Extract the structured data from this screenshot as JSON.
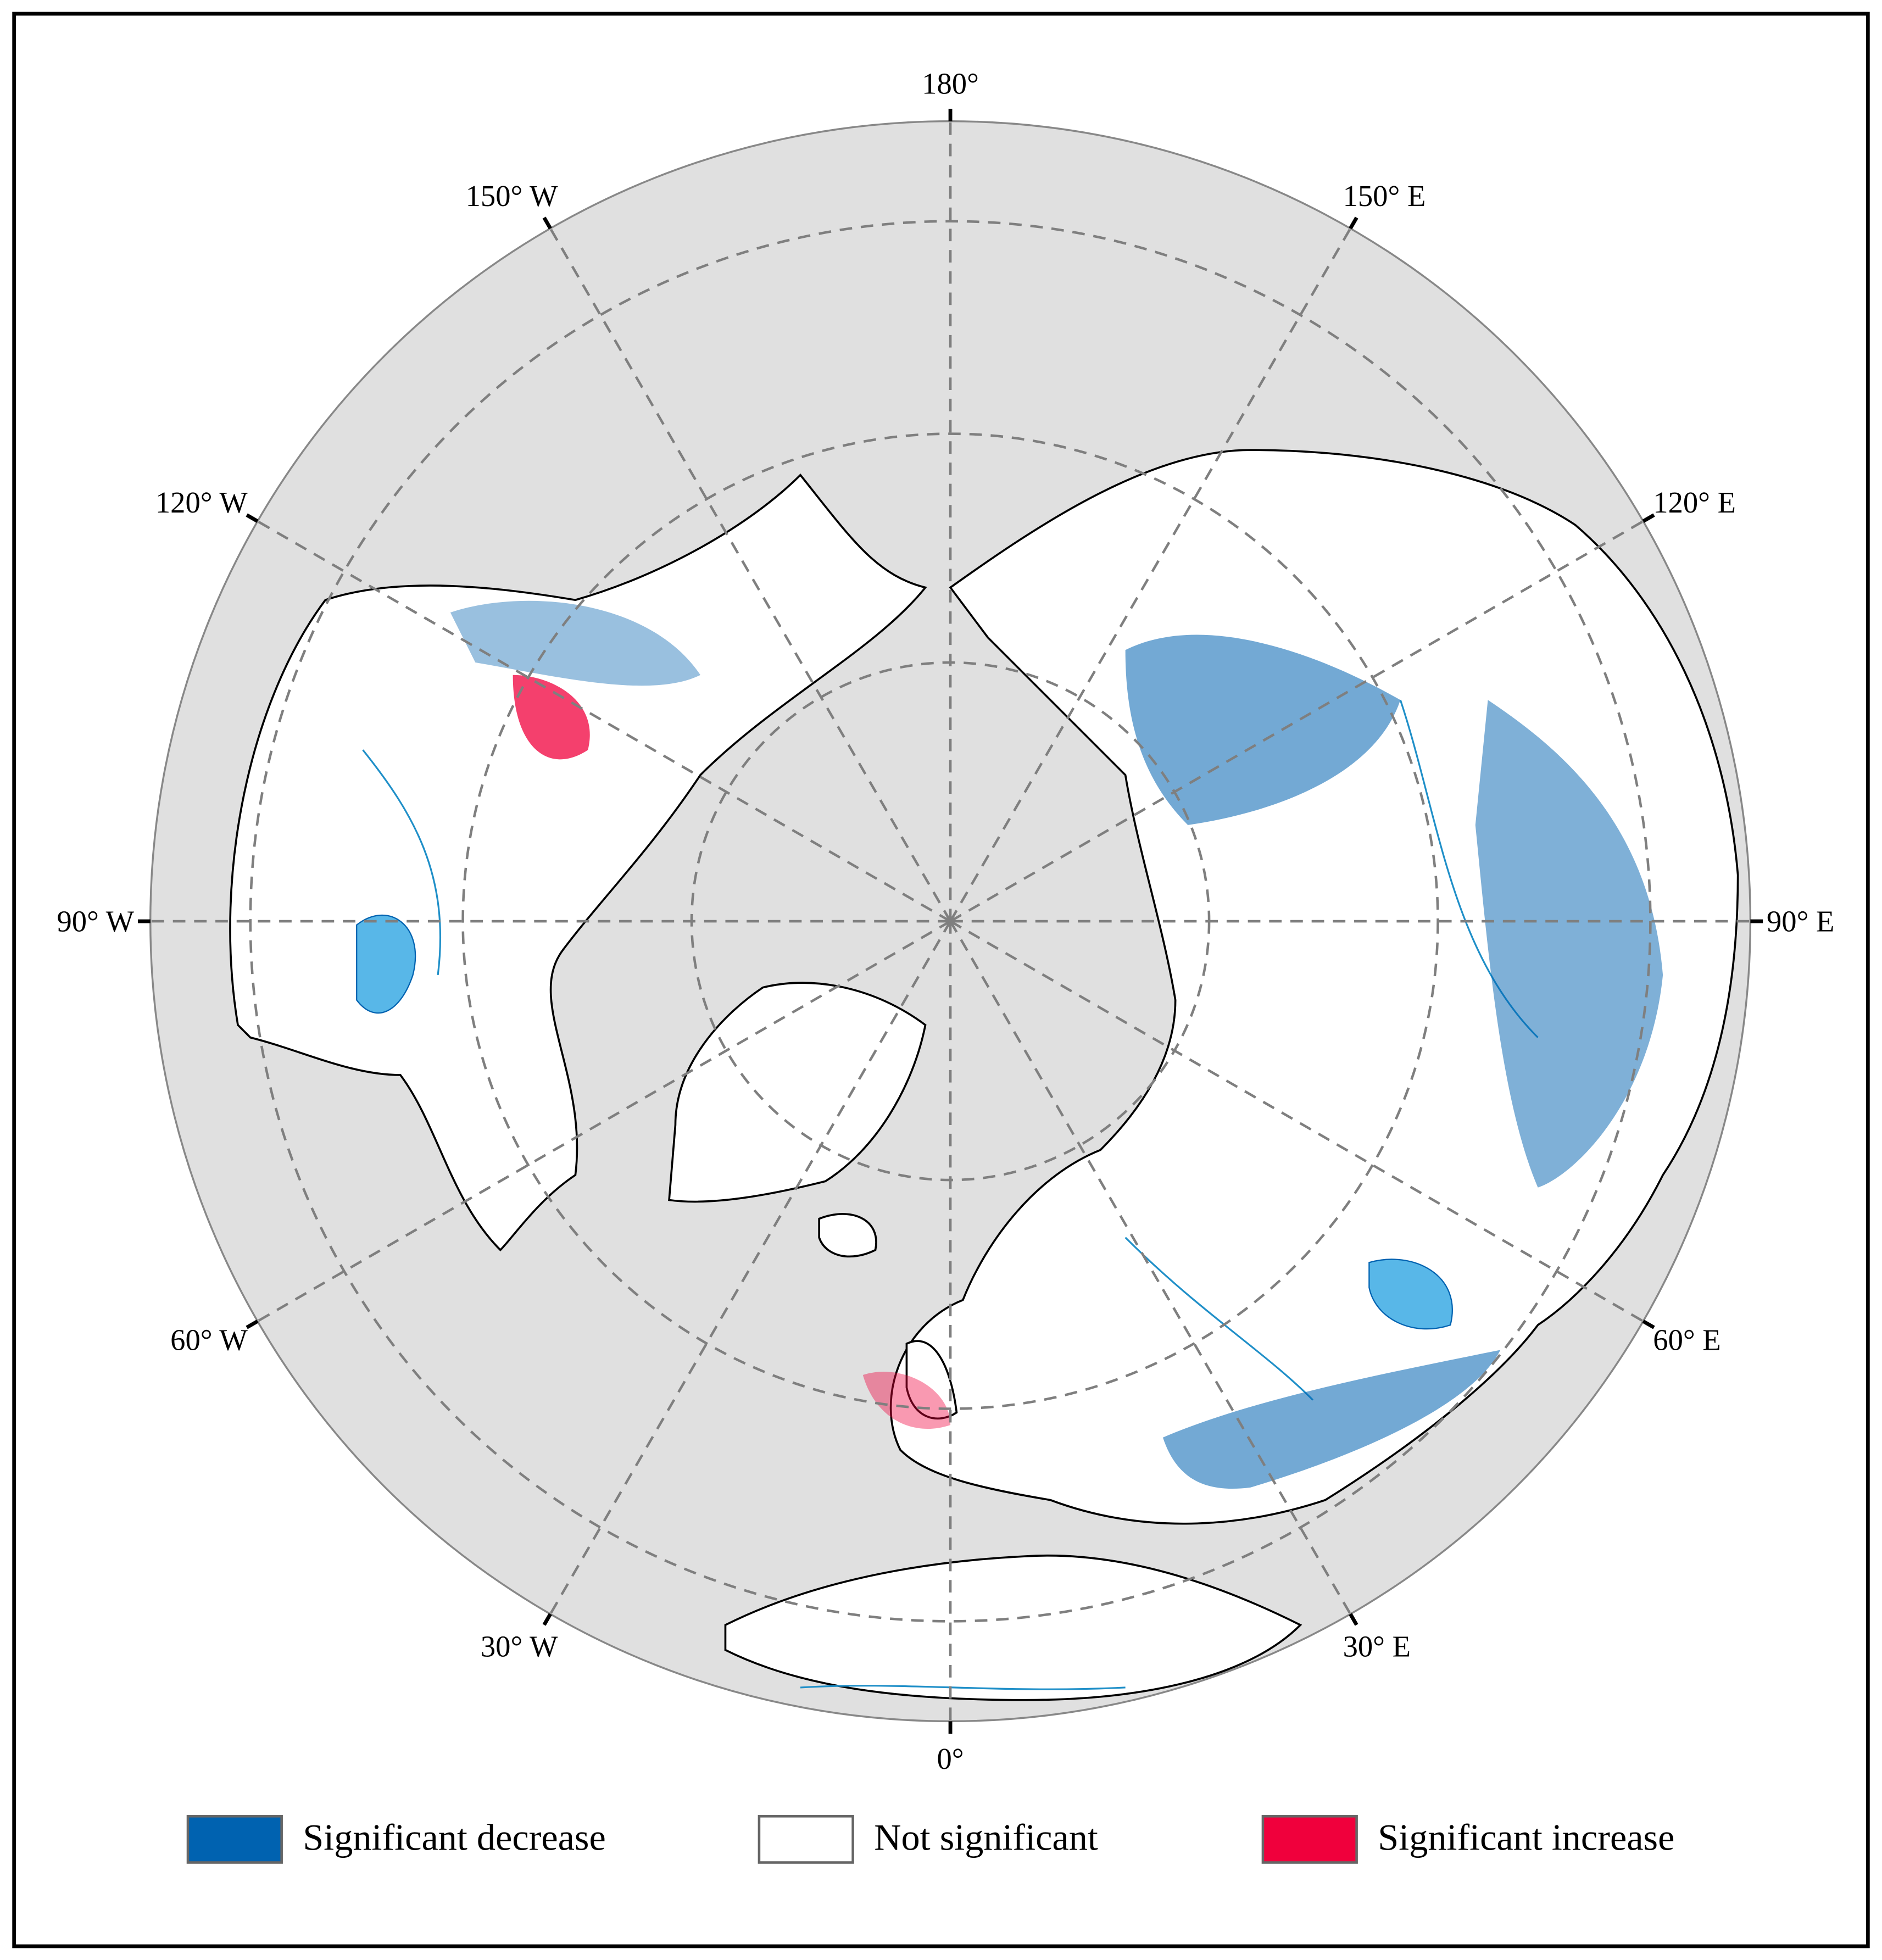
{
  "map": {
    "meridian_labels": [
      "180°",
      "150° E",
      "120° E",
      "90° E",
      "60° E",
      "30° E",
      "0°",
      "30° W",
      "60° W",
      "90° W",
      "120° W",
      "150° W"
    ],
    "legend": [
      {
        "label": "Significant decrease",
        "color": "#0062b0"
      },
      {
        "label": "Not significant",
        "color": "#ffffff"
      },
      {
        "label": "Significant increase",
        "color": "#f0003c"
      }
    ]
  }
}
